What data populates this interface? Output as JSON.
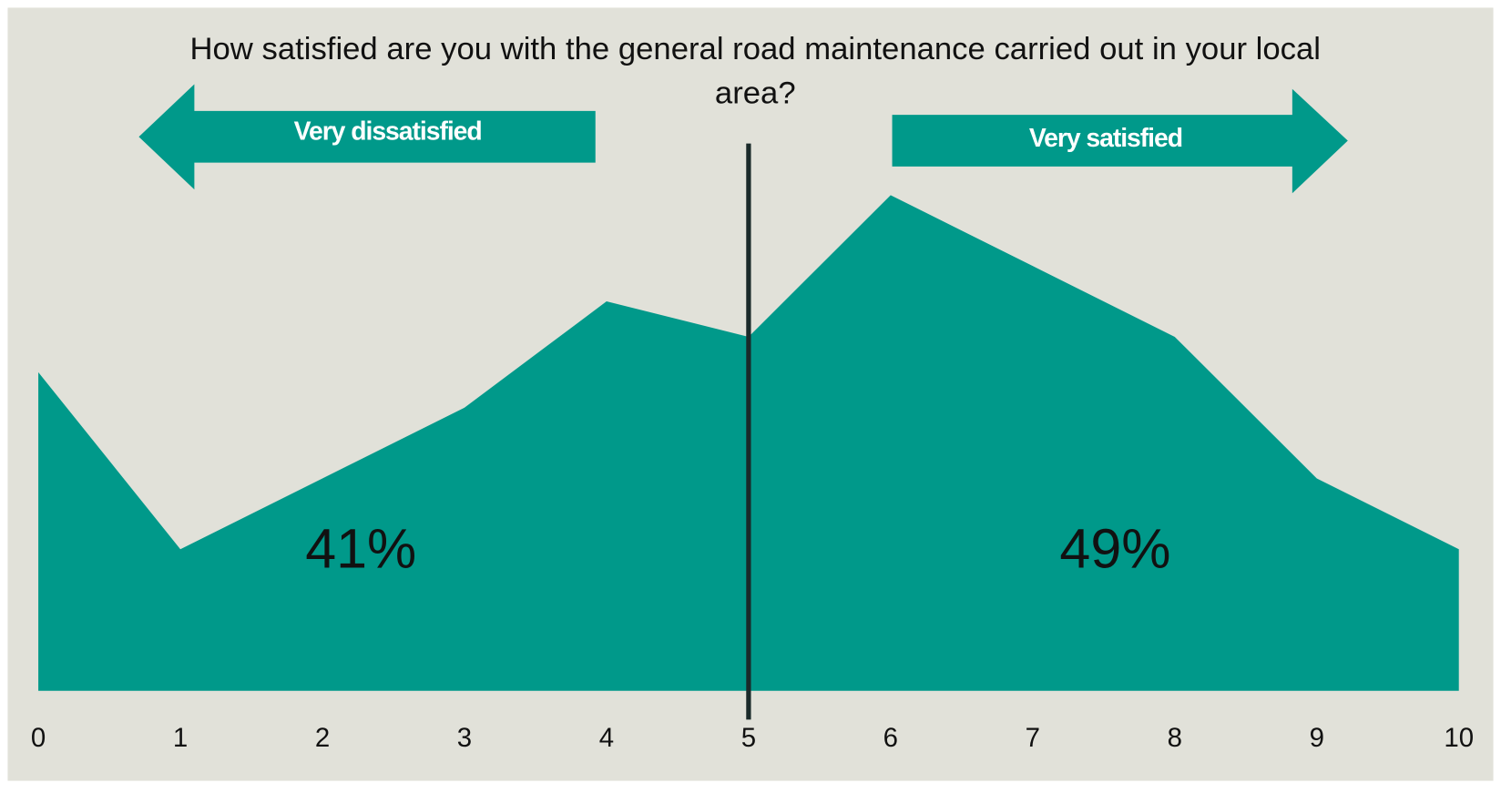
{
  "chart_data": {
    "type": "area",
    "title": "How satisfied are you with the general road maintenance carried out in your local area?",
    "x": [
      0,
      1,
      2,
      3,
      4,
      5,
      6,
      7,
      8,
      9,
      10
    ],
    "values": [
      9,
      4,
      6,
      8,
      11,
      10,
      14,
      12,
      10,
      6,
      4
    ],
    "color": "#00998a",
    "xlim": [
      0,
      10
    ],
    "xticks": [
      0,
      1,
      2,
      3,
      4,
      5,
      6,
      7,
      8,
      9,
      10
    ],
    "ylim": [
      0,
      14
    ],
    "reference_x": 5,
    "left_label": "Very dissatisfied",
    "right_label": "Very satisfied",
    "left_share": "41%",
    "right_share": "49%"
  }
}
